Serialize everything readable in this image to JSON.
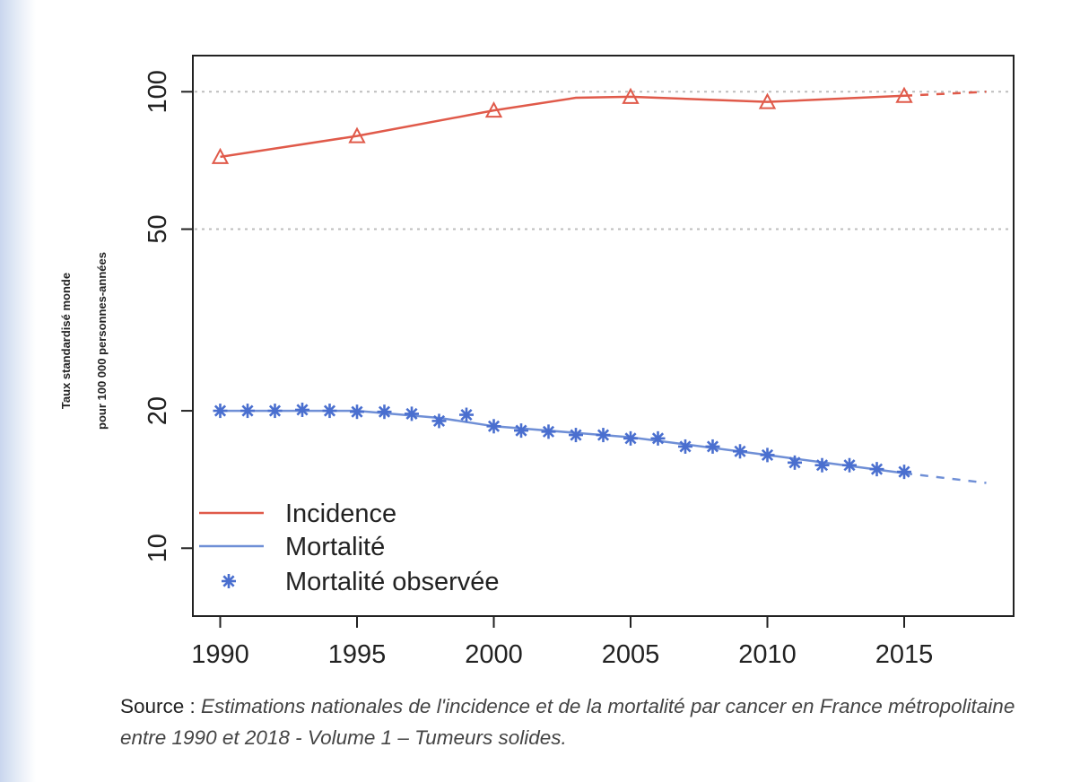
{
  "chart_data": {
    "type": "line",
    "title": "",
    "xlabel": "",
    "ylabel_line1": "Taux standardisé monde",
    "ylabel_line2": "pour 100 000 personnes-années",
    "y_scale": "log",
    "xlim": [
      1989,
      2019
    ],
    "ylim": [
      7.1,
      120
    ],
    "x_ticks": [
      1990,
      1995,
      2000,
      2005,
      2010,
      2015
    ],
    "y_ticks": [
      10,
      20,
      50,
      100
    ],
    "grid": "dotted horizontal at 50 and 100",
    "legend_position": "bottom-left",
    "series": [
      {
        "name": "Incidence",
        "color": "#e05a4a",
        "style": "solid line (dashed after 2015)",
        "x": [
          1990,
          1995,
          2000,
          2003,
          2005,
          2010,
          2015,
          2018
        ],
        "y": [
          72,
          80,
          91,
          97,
          97.5,
          95,
          98,
          100
        ],
        "markers": {
          "symbol": "triangle",
          "x": [
            1990,
            1995,
            2000,
            2005,
            2010,
            2015
          ],
          "y": [
            72,
            80,
            91,
            97.5,
            95,
            98
          ]
        },
        "projection_from": 2015
      },
      {
        "name": "Mortalité",
        "color": "#6f8fd6",
        "style": "solid line (dashed after 2015)",
        "x": [
          1990,
          1995,
          1998,
          2000,
          2005,
          2010,
          2015,
          2018
        ],
        "y": [
          20,
          20,
          19.3,
          18.5,
          17.5,
          16,
          14.6,
          13.9
        ],
        "projection_from": 2015
      },
      {
        "name": "Mortalité observée",
        "color": "#4a6fcf",
        "style": "asterisk markers",
        "x": [
          1990,
          1991,
          1992,
          1993,
          1994,
          1995,
          1996,
          1997,
          1998,
          1999,
          2000,
          2001,
          2002,
          2003,
          2004,
          2005,
          2006,
          2007,
          2008,
          2009,
          2010,
          2011,
          2012,
          2013,
          2014,
          2015
        ],
        "y": [
          20.0,
          20.0,
          20.0,
          20.1,
          20.0,
          19.9,
          19.9,
          19.7,
          19.0,
          19.6,
          18.5,
          18.1,
          18.0,
          17.7,
          17.7,
          17.4,
          17.4,
          16.7,
          16.7,
          16.3,
          16.0,
          15.4,
          15.2,
          15.2,
          14.9,
          14.7
        ]
      }
    ]
  },
  "caption": {
    "source_label": "Source : ",
    "source_text": "Estimations nationales de l'incidence et de la mortalité par cancer en France métropolitaine entre 1990 et 2018 - Volume 1 – Tumeurs solides."
  }
}
